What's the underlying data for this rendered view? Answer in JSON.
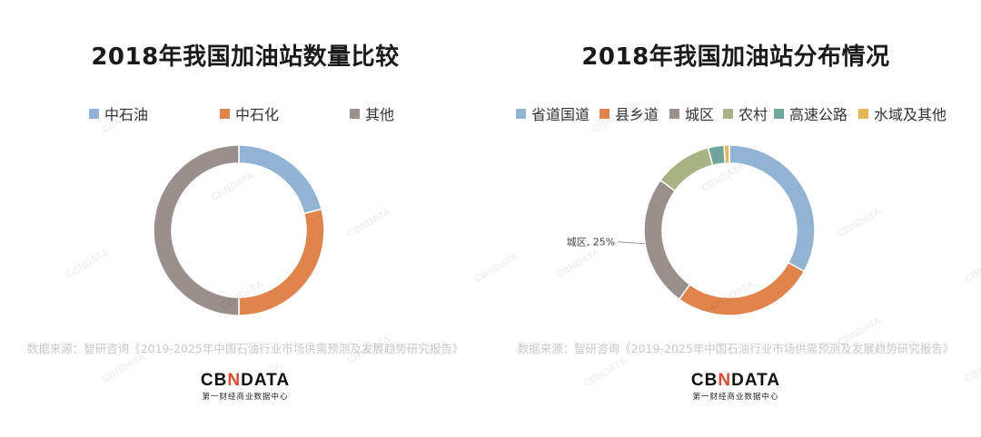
{
  "left": {
    "title": "2018年我国加油站数量比较",
    "legend": [
      {
        "label": "中石油",
        "color": "#92b4d4"
      },
      {
        "label": "中石化",
        "color": "#e0844c"
      },
      {
        "label": "其他",
        "color": "#9a8f8d"
      }
    ]
  },
  "right": {
    "title": "2018年我国加油站分布情况",
    "legend": [
      {
        "label": "省道国道",
        "color": "#92b4d4"
      },
      {
        "label": "县乡道",
        "color": "#e0844c"
      },
      {
        "label": "城区",
        "color": "#9a8f8d"
      },
      {
        "label": "农村",
        "color": "#a8b384"
      },
      {
        "label": "高速公路",
        "color": "#6fa59a"
      },
      {
        "label": "水域及其他",
        "color": "#e3b655"
      }
    ],
    "callout": "城区, 25%"
  },
  "source_text": "数据来源：智研咨询《2019-2025年中国石油行业市场供需预测及发展趋势研究报告》",
  "logo": {
    "text_a": "CB",
    "text_x": "N",
    "text_b": "DATA",
    "subtitle": "第一财经商业数据中心",
    "watermark": "CBNDATA"
  },
  "chart_data": [
    {
      "type": "pie",
      "title": "2018年我国加油站数量比较",
      "categories": [
        "中石油",
        "中石化",
        "其他"
      ],
      "values": [
        21,
        29,
        50
      ],
      "unit": "%",
      "colors": [
        "#92b4d4",
        "#e0844c",
        "#9a8f8d"
      ]
    },
    {
      "type": "pie",
      "title": "2018年我国加油站分布情况",
      "categories": [
        "省道国道",
        "县乡道",
        "城区",
        "农村",
        "高速公路",
        "水域及其他"
      ],
      "values": [
        33,
        27,
        25,
        11,
        3,
        1
      ],
      "unit": "%",
      "colors": [
        "#92b4d4",
        "#e0844c",
        "#9a8f8d",
        "#a8b384",
        "#6fa59a",
        "#e3b655"
      ],
      "data_labels": [
        "",
        "",
        "城区, 25%",
        "",
        "",
        ""
      ]
    }
  ]
}
